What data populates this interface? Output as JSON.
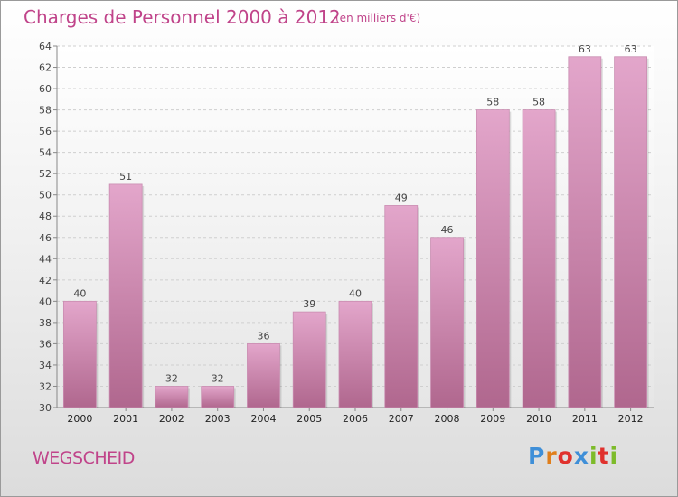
{
  "header": {
    "title": "Charges de Personnel 2000 à 2012",
    "subtitle": "(en milliers d'€)"
  },
  "footer": {
    "commune": "WEGSCHEID",
    "brand": "Proxiti",
    "brand_colors": [
      "#3f8fd8",
      "#e07f1c",
      "#e0312d",
      "#3f8fd8",
      "#7dbb2a",
      "#e0312d",
      "#7dbb2a"
    ]
  },
  "chart_data": {
    "type": "bar",
    "categories": [
      "2000",
      "2001",
      "2002",
      "2003",
      "2004",
      "2005",
      "2006",
      "2007",
      "2008",
      "2009",
      "2010",
      "2011",
      "2012"
    ],
    "values": [
      40,
      51,
      32,
      32,
      36,
      39,
      40,
      49,
      46,
      58,
      58,
      63,
      63
    ],
    "data_labels": [
      "40",
      "51",
      "32",
      "32",
      "36",
      "39",
      "40",
      "49",
      "46",
      "58",
      "58",
      "63",
      "63"
    ],
    "ylim": [
      30,
      64
    ],
    "yticks": [
      30,
      32,
      34,
      36,
      38,
      40,
      42,
      44,
      46,
      48,
      50,
      52,
      54,
      56,
      58,
      60,
      62,
      64
    ],
    "ytick_labels": [
      "30",
      "32",
      "34",
      "36",
      "38",
      "40",
      "42",
      "44",
      "46",
      "48",
      "50",
      "52",
      "54",
      "56",
      "58",
      "60",
      "62",
      "64"
    ],
    "grid": true,
    "bar_color_top": "#e3a6cb",
    "bar_color_bottom": "#b0678e"
  }
}
